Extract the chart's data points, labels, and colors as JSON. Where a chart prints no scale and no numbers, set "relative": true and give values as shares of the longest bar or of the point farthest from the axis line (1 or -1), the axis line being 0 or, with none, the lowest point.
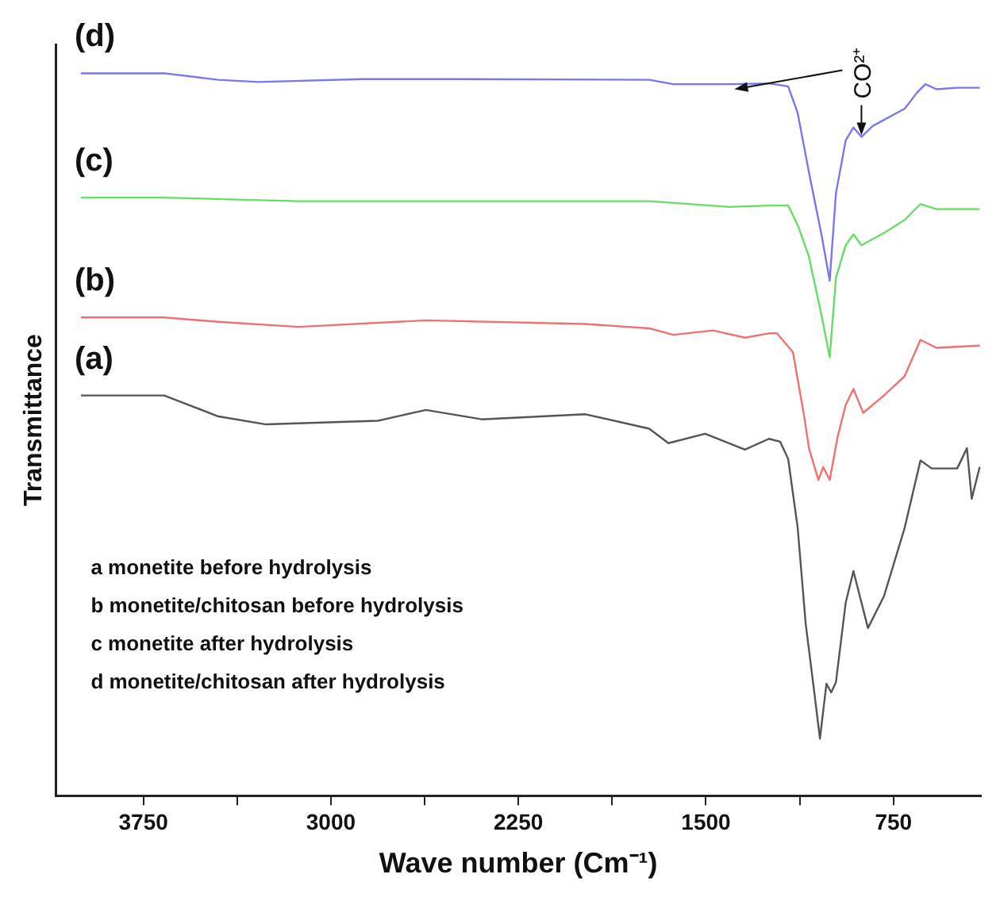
{
  "chart_data": {
    "type": "line",
    "relative": true,
    "xlabel": "Wave number (Cm⁻¹)",
    "ylabel": "Transmittance",
    "xlim": [
      4100,
      400
    ],
    "xticks": [
      3750,
      {
        "value": 3375,
        "label": null
      },
      3000,
      {
        "value": 2625,
        "label": null
      },
      2250,
      {
        "value": 1875,
        "label": null
      },
      1500,
      {
        "value": 1125,
        "label": null
      },
      750
    ],
    "tick_labels": "x",
    "grid": false,
    "legend": false,
    "marker": "none",
    "line_style": "solid",
    "annotations": [
      "a monetite before hydrolysis",
      "b monetite/chitosan before hydrolysis",
      "c monetite after hydrolysis",
      "d monetite/chitosan after hydrolysis",
      {
        "text": "CO²⁺",
        "x": 878,
        "y": 0.912
      }
    ],
    "series": [
      {
        "name": "(a)",
        "color": "#555555",
        "x": [
          4000,
          3667,
          3450,
          3259,
          2812,
          2620,
          2397,
          1982,
          1727,
          1650,
          1503,
          1344,
          1248,
          1203,
          1171,
          1133,
          1101,
          1069,
          1044,
          1018,
          999,
          980,
          941,
          910,
          852,
          788,
          705,
          642,
          597,
          495,
          456,
          437,
          405
        ],
        "values": [
          0.554,
          0.554,
          0.525,
          0.514,
          0.519,
          0.534,
          0.521,
          0.528,
          0.508,
          0.488,
          0.501,
          0.479,
          0.494,
          0.49,
          0.466,
          0.371,
          0.238,
          0.15,
          0.079,
          0.155,
          0.143,
          0.157,
          0.267,
          0.311,
          0.232,
          0.276,
          0.371,
          0.464,
          0.453,
          0.453,
          0.481,
          0.411,
          0.455
        ]
      },
      {
        "name": "(b)",
        "color": "#f07070",
        "x": [
          4000,
          3667,
          3450,
          3131,
          2620,
          1982,
          1727,
          1631,
          1471,
          1344,
          1248,
          1216,
          1152,
          1107,
          1088,
          1050,
          1031,
          1005,
          973,
          941,
          910,
          871,
          788,
          705,
          642,
          578,
          405
        ],
        "values": [
          0.662,
          0.662,
          0.656,
          0.649,
          0.658,
          0.653,
          0.647,
          0.638,
          0.644,
          0.634,
          0.64,
          0.64,
          0.614,
          0.525,
          0.481,
          0.437,
          0.455,
          0.437,
          0.497,
          0.541,
          0.563,
          0.53,
          0.554,
          0.581,
          0.631,
          0.62,
          0.623
        ]
      },
      {
        "name": "(c)",
        "color": "#66dd66",
        "x": [
          4000,
          3667,
          3131,
          1727,
          1407,
          1248,
          1171,
          1133,
          1088,
          1037,
          1005,
          980,
          941,
          910,
          878,
          788,
          705,
          642,
          578,
          405
        ],
        "values": [
          0.828,
          0.828,
          0.823,
          0.823,
          0.815,
          0.817,
          0.817,
          0.79,
          0.746,
          0.664,
          0.607,
          0.717,
          0.762,
          0.777,
          0.762,
          0.779,
          0.797,
          0.819,
          0.812,
          0.812
        ]
      },
      {
        "name": "(d)",
        "color": "#7777ee",
        "x": [
          4000,
          3667,
          3450,
          3290,
          2876,
          2493,
          1727,
          1631,
          1407,
          1248,
          1171,
          1133,
          1088,
          1037,
          1005,
          980,
          941,
          910,
          878,
          833,
          705,
          654,
          622,
          578,
          495,
          405
        ],
        "values": [
          1.0,
          1.0,
          0.991,
          0.988,
          0.992,
          0.992,
          0.991,
          0.985,
          0.985,
          0.986,
          0.982,
          0.945,
          0.863,
          0.775,
          0.713,
          0.834,
          0.907,
          0.925,
          0.912,
          0.927,
          0.951,
          0.974,
          0.985,
          0.978,
          0.98,
          0.98
        ]
      }
    ]
  }
}
